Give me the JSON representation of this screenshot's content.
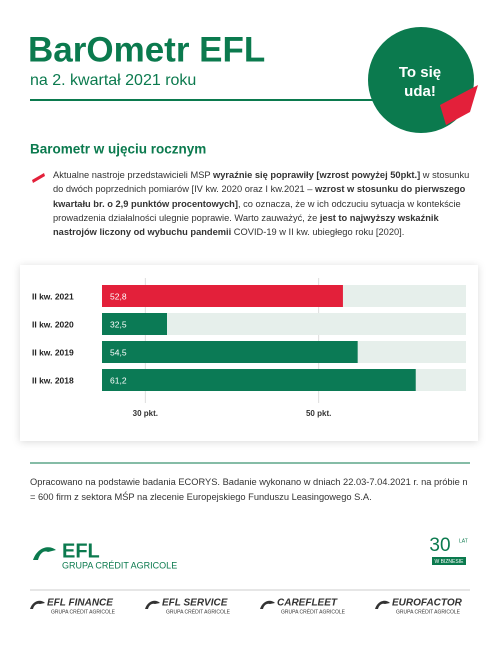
{
  "header": {
    "title": "BarOmetr EFL",
    "subtitle": "na 2. kwartał 2021 roku",
    "badge": [
      "To się",
      "uda!"
    ]
  },
  "section": {
    "heading": "Barometr w ujęciu rocznym",
    "paragraph": [
      "Aktualne nastroje przedstawicieli MSP ",
      "wyraźnie się poprawiły [wzrost powyżej 50pkt.]",
      " w stosunku do dwóch poprzednich pomiarów [IV kw. 2020 oraz I kw.2021 – ",
      "wzrost w stosunku do pierwszego kwartału br. o 2,9 punktów procentowych]",
      ", co oznacza, że w ich odczuciu sytuacja w kontekście prowadzenia działalności ulegnie poprawie. Warto zauważyć, że ",
      "jest to najwyższy wskaźnik nastrojów liczony od wybuchu pandemii",
      " COVID-19 w II kw. ubiegłego roku [2020]."
    ]
  },
  "chart_data": {
    "type": "bar",
    "orientation": "horizontal",
    "categories": [
      "II kw. 2021",
      "II kw. 2020",
      "II kw. 2019",
      "II kw. 2018"
    ],
    "values": [
      52.8,
      32.5,
      54.5,
      61.2
    ],
    "value_labels": [
      "52,8",
      "32,5",
      "54,5",
      "61,2"
    ],
    "colors": [
      "#e3203a",
      "#0b7a55",
      "#0b7a55",
      "#0b7a55"
    ],
    "xlim": [
      25,
      67
    ],
    "xticks": [
      {
        "value": 30,
        "label": "30 pkt."
      },
      {
        "value": 50,
        "label": "50 pkt."
      }
    ],
    "grid": true
  },
  "footnote": "Opracowano na podstawie badania ECORYS. Badanie wykonano w dniach 22.03-7.04.2021 r. na próbie n = 600 firm z sektora MŚP na zlecenie Europejskiego Funduszu Leasingowego S.A.",
  "logos": {
    "main": "EFL",
    "group": "GRUPA CRÉDIT AGRICOLE",
    "anniversary": [
      "30",
      "LAT",
      "W BIZNESIE"
    ],
    "brands": [
      {
        "name": "EFL FINANCE",
        "group": "GRUPA CRÉDIT AGRICOLE"
      },
      {
        "name": "EFL SERVICE",
        "group": "GRUPA CRÉDIT AGRICOLE"
      },
      {
        "name": "CAREFLEET",
        "group": "GRUPA CRÉDIT AGRICOLE"
      },
      {
        "name": "EUROFACTOR",
        "group": "GRUPA CRÉDIT AGRICOLE"
      }
    ]
  }
}
